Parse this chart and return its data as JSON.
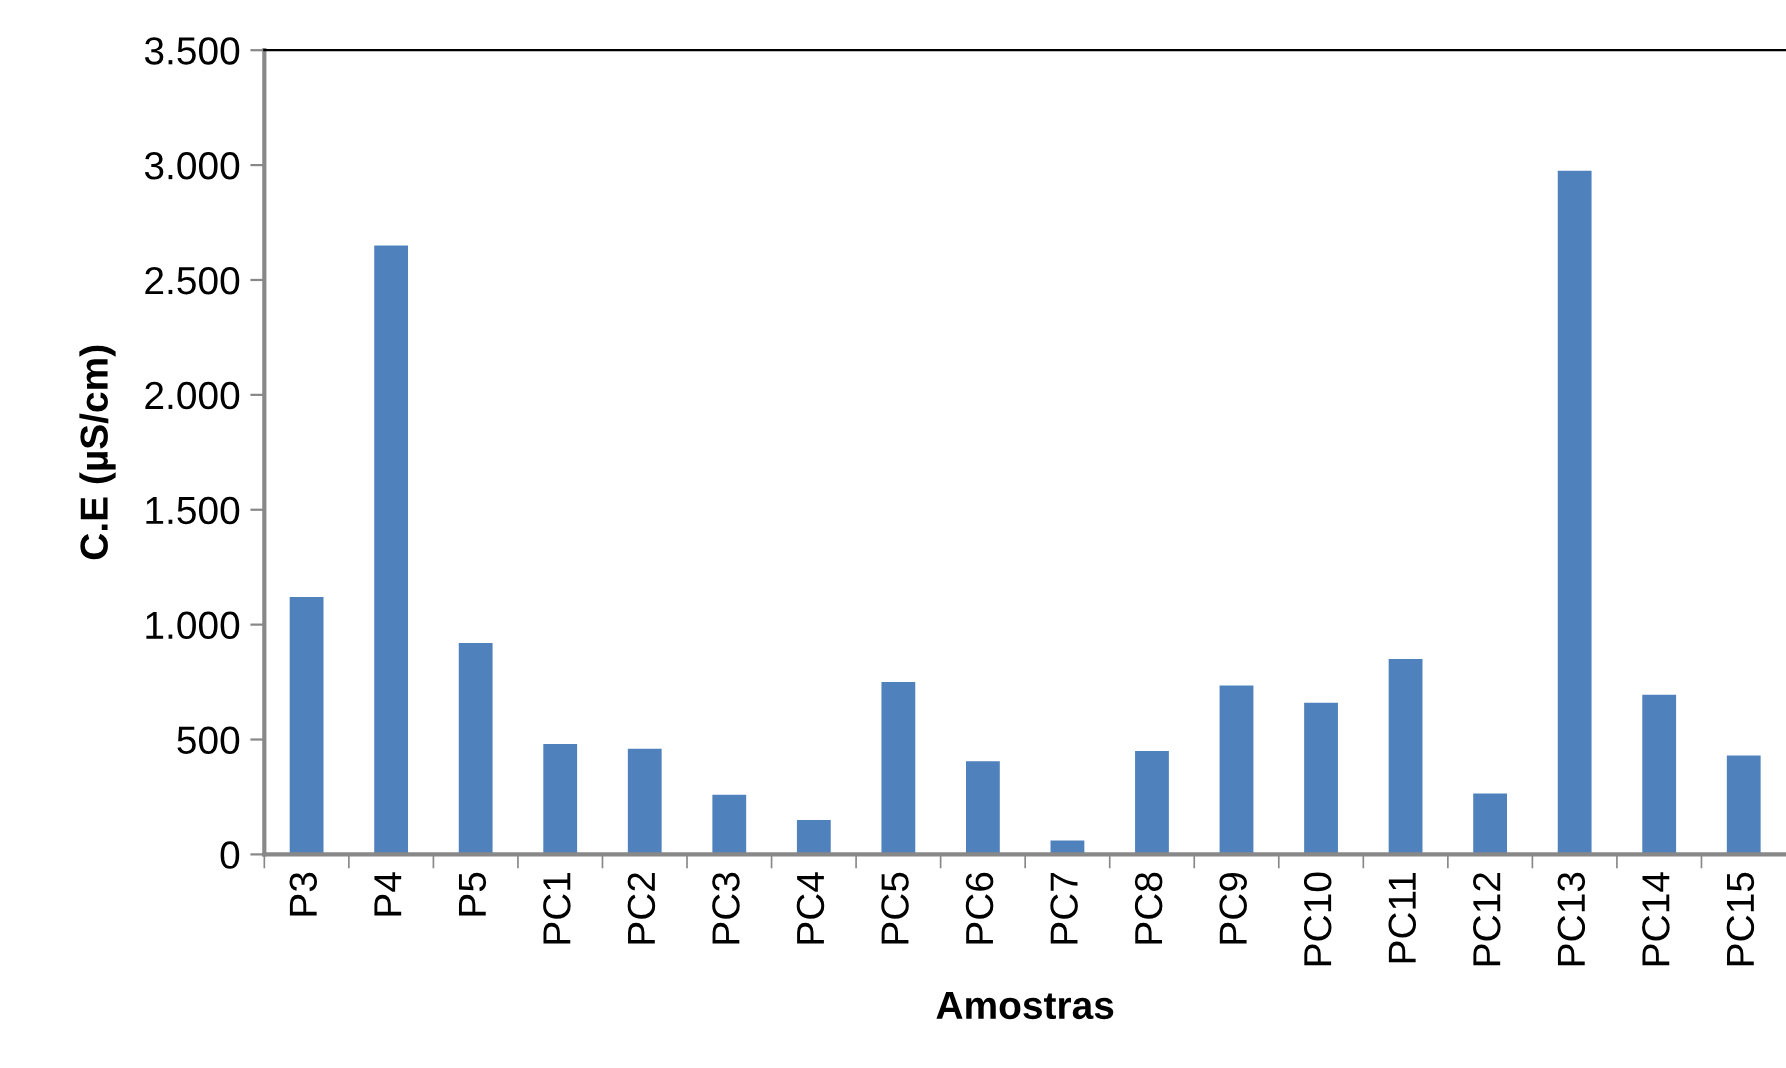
{
  "chart_data": {
    "type": "bar",
    "xlabel": "Amostras",
    "ylabel": "C.E (µS/cm)",
    "categories": [
      "P3",
      "P4",
      "P5",
      "PC1",
      "PC2",
      "PC3",
      "PC4",
      "PC5",
      "PC6",
      "PC7",
      "PC8",
      "PC9",
      "PC10",
      "PC11",
      "PC12",
      "PC13",
      "PC14",
      "PC15"
    ],
    "values": [
      1120,
      2650,
      920,
      480,
      460,
      260,
      150,
      750,
      405,
      60,
      450,
      735,
      660,
      850,
      265,
      2975,
      695,
      430
    ],
    "color": "#4f81bd",
    "ylim": [
      0,
      3500
    ],
    "yticks": [
      {
        "value": 0,
        "label": "0"
      },
      {
        "value": 500,
        "label": "500"
      },
      {
        "value": 1000,
        "label": "1.000"
      },
      {
        "value": 1500,
        "label": "1.500"
      },
      {
        "value": 2000,
        "label": "2.000"
      },
      {
        "value": 2500,
        "label": "2.500"
      },
      {
        "value": 3000,
        "label": "3.000"
      },
      {
        "value": 3500,
        "label": "3.500"
      }
    ],
    "grid": false,
    "legend": false
  }
}
